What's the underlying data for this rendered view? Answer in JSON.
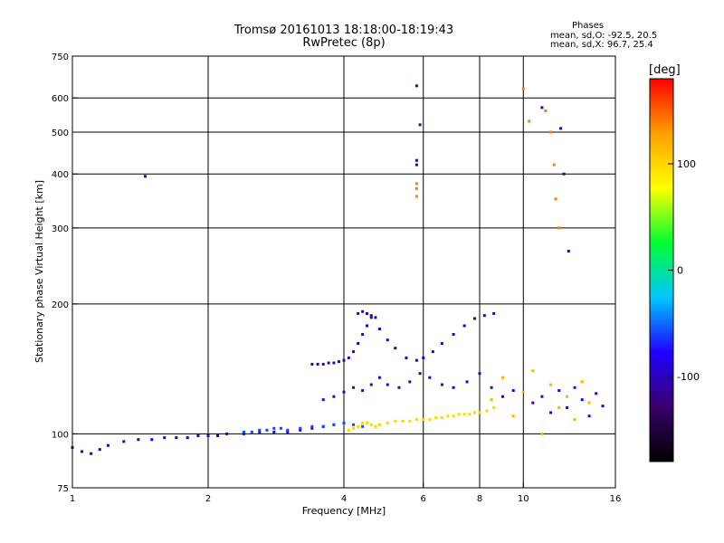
{
  "header": {
    "title": "Tromsø 20161013 18:18:00-18:19:43",
    "subtitle": "RwPretec (8p)"
  },
  "phase_info": {
    "heading": "Phases",
    "o_line": "mean, sd,O: -92.5, 20.5",
    "x_line": "mean, sd,X:  96.7, 25.4"
  },
  "colorbar": {
    "unit": "[deg]",
    "range": [
      -180,
      180
    ],
    "tick_labels": [
      "100",
      "0",
      "-100"
    ],
    "tick_values": [
      100,
      0,
      -100
    ],
    "colors": [
      "#000000",
      "#3a006b",
      "#2000ff",
      "#00c8ff",
      "#00ff30",
      "#ffff00",
      "#ffa000",
      "#ff0000"
    ]
  },
  "chart_data": {
    "type": "scatter",
    "xlabel": "Frequency [MHz]",
    "ylabel": "Stationary phase Virtual Height [km]",
    "x_scale": "log",
    "y_scale": "log",
    "xlim": [
      1,
      16
    ],
    "ylim": [
      75,
      750
    ],
    "x_ticks": [
      1,
      2,
      4,
      6,
      8,
      10,
      16
    ],
    "x_tick_labels": [
      "1",
      "2",
      "4",
      "6",
      "8",
      "10",
      "16"
    ],
    "y_ticks": [
      75,
      100,
      200,
      300,
      400,
      500,
      600,
      750
    ],
    "y_tick_labels": [
      "75",
      "100",
      "200",
      "300",
      "400",
      "500",
      "600",
      "750"
    ],
    "grid_x": [
      2,
      4,
      6,
      8,
      10
    ],
    "grid_y": [
      100,
      200,
      300,
      400,
      500,
      600
    ],
    "series": [
      {
        "mode": "O",
        "phase": -100,
        "x": [
          1.0,
          1.05,
          1.1,
          1.15,
          1.2,
          1.3,
          1.4,
          1.5,
          1.6,
          1.7,
          1.8,
          1.9,
          2.0,
          2.1,
          2.2,
          2.4,
          2.6,
          2.8,
          3.0,
          3.2,
          3.4,
          3.6,
          3.8
        ],
        "y": [
          93,
          91,
          90,
          92,
          94,
          96,
          97,
          97,
          98,
          98,
          98,
          99,
          99,
          99,
          100,
          100,
          101,
          101,
          101,
          102,
          103,
          104,
          105
        ]
      },
      {
        "mode": "O",
        "phase": -100,
        "x": [
          3.4,
          3.5,
          3.6,
          3.7,
          3.8,
          3.9,
          4.0,
          4.1,
          4.2,
          4.3,
          4.4,
          4.5,
          4.6
        ],
        "y": [
          145,
          145,
          145,
          146,
          146,
          147,
          148,
          150,
          155,
          162,
          170,
          178,
          186
        ]
      },
      {
        "mode": "O",
        "phase": -100,
        "x": [
          4.3,
          4.4,
          4.5,
          4.6,
          4.7,
          4.8,
          5.0,
          5.2,
          5.5,
          5.8,
          6.0,
          6.3,
          6.6,
          7.0,
          7.4,
          7.8,
          8.2,
          8.6
        ],
        "y": [
          190,
          192,
          190,
          188,
          186,
          175,
          165,
          158,
          150,
          148,
          150,
          155,
          162,
          170,
          178,
          185,
          188,
          190
        ]
      },
      {
        "mode": "O",
        "phase": -90,
        "x": [
          3.6,
          3.8,
          4.0,
          4.2,
          4.4,
          4.6,
          4.8,
          5.0,
          5.3,
          5.6,
          5.9,
          6.2,
          6.6,
          7.0,
          7.5,
          8.0,
          8.5,
          9.0,
          9.5
        ],
        "y": [
          120,
          122,
          125,
          128,
          126,
          130,
          135,
          130,
          128,
          132,
          138,
          135,
          130,
          128,
          132,
          138,
          128,
          122,
          126
        ]
      },
      {
        "mode": "O",
        "phase": -60,
        "x": [
          2.4,
          2.5,
          2.6,
          2.7,
          2.8,
          2.9,
          3.0,
          3.2,
          3.4,
          3.6,
          3.8,
          4.0,
          4.2,
          4.4
        ],
        "y": [
          101,
          101,
          102,
          102,
          103,
          103,
          102,
          103,
          104,
          104,
          105,
          106,
          105,
          104
        ]
      },
      {
        "mode": "X",
        "phase": 100,
        "x": [
          4.1,
          4.2,
          4.3,
          4.4,
          4.5,
          4.6,
          4.7,
          4.8,
          5.0,
          5.2,
          5.4,
          5.6,
          5.8,
          6.0,
          6.2,
          6.4,
          6.6,
          6.8,
          7.0,
          7.2,
          7.4,
          7.6,
          7.8,
          8.0,
          8.3,
          8.6
        ],
        "y": [
          102,
          103,
          104,
          106,
          106,
          105,
          104,
          105,
          106,
          107,
          107,
          107,
          108,
          108,
          108,
          109,
          109,
          110,
          110,
          111,
          111,
          111,
          112,
          112,
          113,
          115
        ]
      },
      {
        "mode": "X",
        "phase": 120,
        "x": [
          8.5,
          9.0,
          9.5,
          10.0,
          10.5,
          11.0,
          11.5,
          12.0,
          12.5,
          13.0,
          13.5,
          14.0
        ],
        "y": [
          120,
          135,
          110,
          125,
          140,
          100,
          130,
          115,
          122,
          108,
          132,
          118
        ]
      },
      {
        "mode": "O",
        "phase": -80,
        "x": [
          10.5,
          11.0,
          11.5,
          12.0,
          12.5,
          13.0,
          13.5,
          14.0,
          14.5,
          15.0
        ],
        "y": [
          118,
          122,
          112,
          126,
          115,
          128,
          120,
          110,
          124,
          116
        ]
      },
      {
        "mode": "scattered",
        "phase": -100,
        "x": [
          5.8,
          5.8,
          5.8,
          1.45,
          12.1,
          12.3,
          12.6,
          5.9,
          11.0
        ],
        "y": [
          640,
          430,
          420,
          395,
          510,
          400,
          265,
          520,
          570
        ]
      },
      {
        "mode": "scattered",
        "phase": 140,
        "x": [
          5.8,
          5.8,
          5.8,
          10.0,
          10.3,
          11.2,
          11.5,
          11.7,
          11.8,
          12.0
        ],
        "y": [
          380,
          370,
          355,
          630,
          530,
          560,
          500,
          420,
          350,
          300
        ]
      }
    ]
  }
}
